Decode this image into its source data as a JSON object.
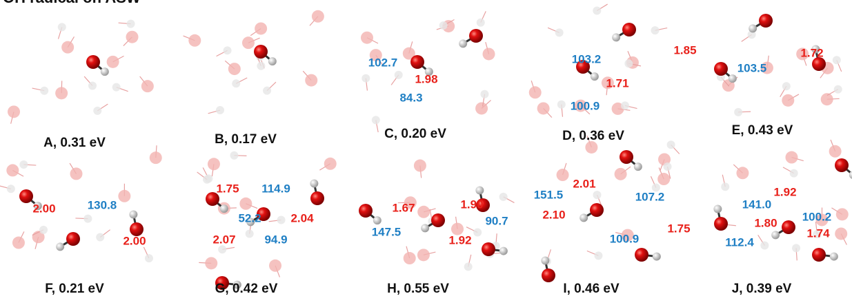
{
  "header": {
    "title": "OH radical on ASW"
  },
  "panels": [
    {
      "label": "A, 0.31 eV",
      "distances": [],
      "angles": []
    },
    {
      "label": "B, 0.17 eV",
      "distances": [],
      "angles": []
    },
    {
      "label": "C, 0.20 eV",
      "distances": [
        "1.98"
      ],
      "angles": [
        "102.7",
        "84.3"
      ]
    },
    {
      "label": "D, 0.36 eV",
      "distances": [
        "1.71"
      ],
      "angles": [
        "103.2",
        "100.9"
      ]
    },
    {
      "label": "E, 0.43 eV",
      "distances": [
        "1.85",
        "1.72"
      ],
      "angles": [
        "103.5"
      ]
    },
    {
      "label": "F, 0.21 eV",
      "distances": [
        "2.00",
        "2.00"
      ],
      "angles": [
        "130.8"
      ]
    },
    {
      "label": "G, 0.42 eV",
      "distances": [
        "1.75",
        "2.04",
        "2.07"
      ],
      "angles": [
        "114.9",
        "52.2",
        "94.9"
      ]
    },
    {
      "label": "H, 0.55 eV",
      "distances": [
        "1.67",
        "1.90",
        "1.92"
      ],
      "angles": [
        "147.5",
        "90.7"
      ]
    },
    {
      "label": "I, 0.46 eV",
      "distances": [
        "2.01",
        "2.10",
        "1.75"
      ],
      "angles": [
        "151.5",
        "107.2",
        "100.9"
      ]
    },
    {
      "label": "J, 0.39 eV",
      "distances": [
        "1.92",
        "1.80",
        "1.74"
      ],
      "angles": [
        "141.0",
        "100.2",
        "112.4"
      ]
    }
  ]
}
